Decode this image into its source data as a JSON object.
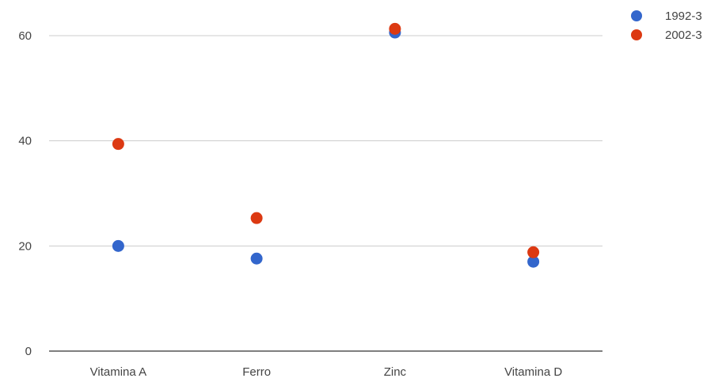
{
  "chart_data": {
    "type": "scatter",
    "categories": [
      "Vitamina A",
      "Ferro",
      "Zinc",
      "Vitamina D"
    ],
    "series": [
      {
        "name": "1992-3",
        "color": "#3366cc",
        "values": [
          20,
          17.6,
          60.6,
          17
        ]
      },
      {
        "name": "2002-3",
        "color": "#dc3912",
        "values": [
          39.4,
          25.3,
          61.3,
          18.8
        ]
      }
    ],
    "yticks": [
      0,
      20,
      40,
      60
    ],
    "ylim": [
      0,
      60
    ],
    "grid": true,
    "legend_position": "right"
  }
}
